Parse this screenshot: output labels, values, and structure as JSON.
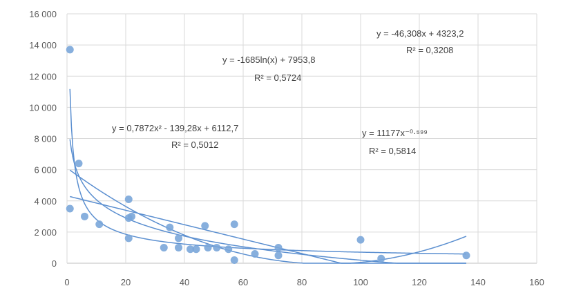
{
  "chart_data": {
    "type": "scatter",
    "title": "",
    "xlabel": "",
    "ylabel": "",
    "xlim": [
      0,
      160
    ],
    "ylim": [
      0,
      16000
    ],
    "grid": true,
    "x_ticks": [
      "0",
      "20",
      "40",
      "60",
      "80",
      "100",
      "120",
      "140",
      "160"
    ],
    "y_ticks": [
      "0",
      "2 000",
      "4 000",
      "6 000",
      "8 000",
      "10 000",
      "12 000",
      "14 000",
      "16 000"
    ],
    "marker_color": "#7aa6d9",
    "line_color": "#5b8fd0",
    "points": [
      [
        1,
        13700
      ],
      [
        1,
        3500
      ],
      [
        4,
        6400
      ],
      [
        6,
        3000
      ],
      [
        11,
        2500
      ],
      [
        21,
        4100
      ],
      [
        21,
        1600
      ],
      [
        21,
        2900
      ],
      [
        22,
        3000
      ],
      [
        33,
        1000
      ],
      [
        35,
        2300
      ],
      [
        38,
        1600
      ],
      [
        38,
        1000
      ],
      [
        42,
        900
      ],
      [
        44,
        900
      ],
      [
        47,
        2400
      ],
      [
        48,
        1000
      ],
      [
        51,
        1000
      ],
      [
        55,
        900
      ],
      [
        57,
        2500
      ],
      [
        57,
        200
      ],
      [
        64,
        600
      ],
      [
        72,
        1000
      ],
      [
        72,
        500
      ],
      [
        100,
        1500
      ],
      [
        107,
        300
      ],
      [
        136,
        500
      ]
    ],
    "trendlines": [
      {
        "kind": "linear",
        "equation": "y = -46,308x + 4323,2",
        "r2": "R² = 0,3208",
        "coef": [
          -46.308,
          4323.2
        ]
      },
      {
        "kind": "log",
        "equation": "y = -1685ln(x) + 7953,8",
        "r2": "R² = 0,5724",
        "coef": [
          -1685,
          7953.8
        ]
      },
      {
        "kind": "poly2",
        "equation": "y = 0,7872x² - 139,28x + 6112,7",
        "r2": "R² = 0,5012",
        "coef": [
          0.7872,
          -139.28,
          6112.7
        ]
      },
      {
        "kind": "power",
        "equation": "y = 11177x⁻⁰·⁵⁹⁹",
        "r2": "R² = 0,5814",
        "coef": [
          11177,
          -0.599
        ]
      }
    ]
  }
}
